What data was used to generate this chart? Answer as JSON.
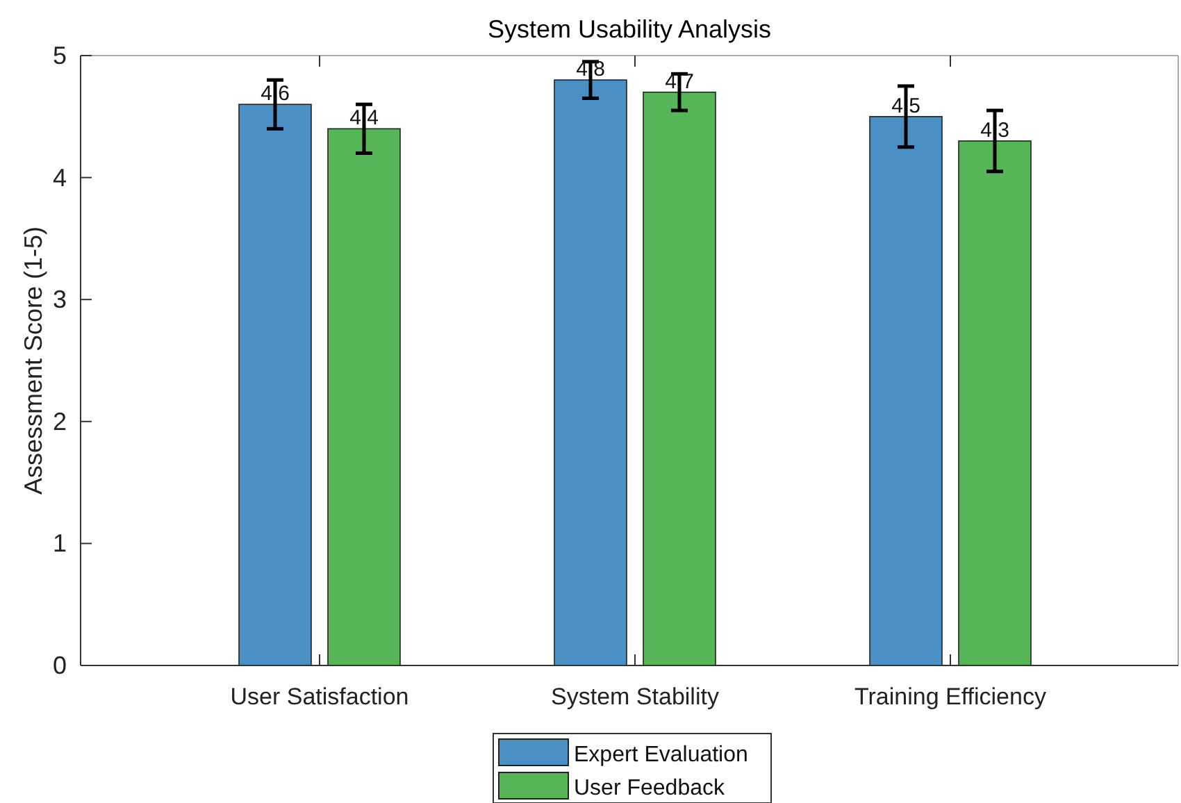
{
  "chart_data": {
    "type": "bar",
    "title": "System Usability Analysis",
    "ylabel": "Assessment Score (1-5)",
    "categories": [
      "User Satisfaction",
      "System Stability",
      "Training Efficiency"
    ],
    "series": [
      {
        "name": "Expert Evaluation",
        "color": "#4a90c4",
        "values": [
          4.6,
          4.8,
          4.5
        ],
        "errors": [
          0.2,
          0.15,
          0.25
        ]
      },
      {
        "name": "User Feedback",
        "color": "#56b556",
        "values": [
          4.4,
          4.7,
          4.3
        ],
        "errors": [
          0.2,
          0.15,
          0.25
        ]
      }
    ],
    "ylim": [
      0,
      5
    ],
    "yticks": [
      0,
      1,
      2,
      3,
      4,
      5
    ],
    "data_labels": true,
    "legend": "bottom",
    "grid": false
  }
}
